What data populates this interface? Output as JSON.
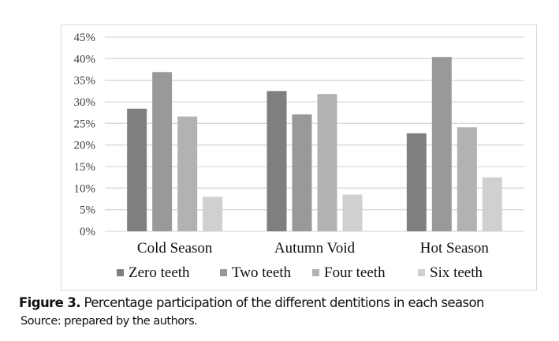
{
  "chart_data": {
    "type": "bar",
    "title": "",
    "xlabel": "",
    "ylabel": "",
    "ylim": [
      0,
      45
    ],
    "yticks": [
      "0%",
      "5%",
      "10%",
      "15%",
      "20%",
      "25%",
      "30%",
      "35%",
      "40%",
      "45%"
    ],
    "grid": true,
    "legend_position": "bottom",
    "categories": [
      "Cold Season",
      "Autumn Void",
      "Hot Season"
    ],
    "series": [
      {
        "name": "Zero teeth",
        "color": "#7f7f7f",
        "values": [
          28.4,
          32.5,
          22.7
        ]
      },
      {
        "name": "Two teeth",
        "color": "#999999",
        "values": [
          36.9,
          27.1,
          40.4
        ]
      },
      {
        "name": "Four teeth",
        "color": "#b2b2b2",
        "values": [
          26.6,
          31.8,
          24.1
        ]
      },
      {
        "name": "Six teeth",
        "color": "#d0d0d0",
        "values": [
          8.0,
          8.5,
          12.5
        ]
      }
    ]
  },
  "caption": {
    "label": "Figure 3.",
    "text": " Percentage participation of the different dentitions in each season"
  },
  "source": "Source: prepared by the authors."
}
